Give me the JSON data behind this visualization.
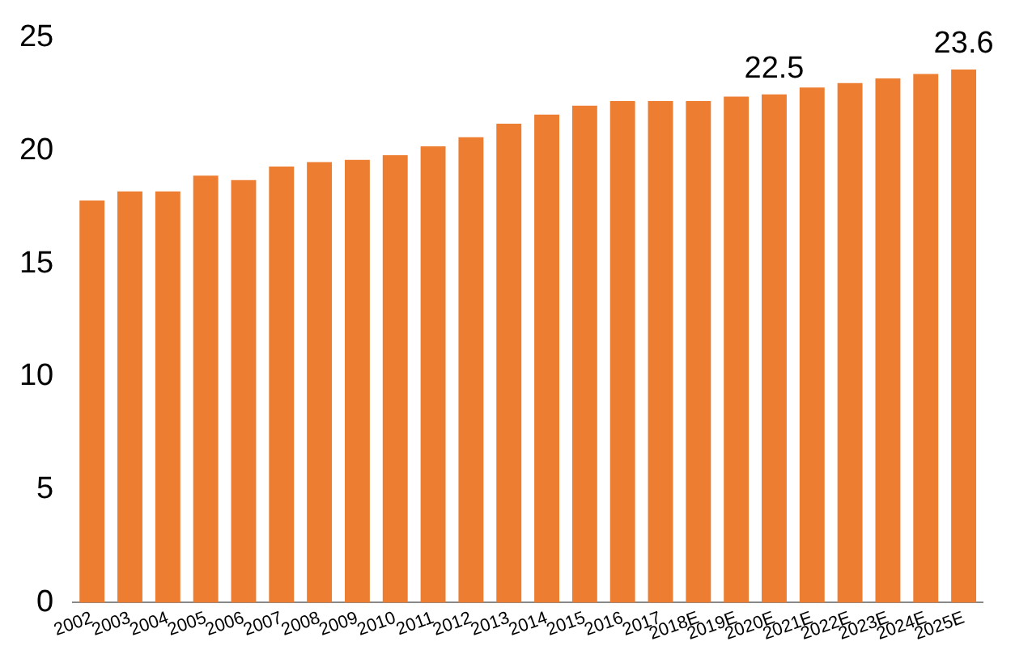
{
  "chart_data": {
    "type": "bar",
    "categories": [
      "2002",
      "2003",
      "2004",
      "2005",
      "2006",
      "2007",
      "2008",
      "2009",
      "2010",
      "2011",
      "2012",
      "2013",
      "2014",
      "2015",
      "2016",
      "2017",
      "2018E",
      "2019E",
      "2020E",
      "2021E",
      "2022E",
      "2023E",
      "2024E",
      "2025E"
    ],
    "values": [
      17.8,
      18.2,
      18.2,
      18.9,
      18.7,
      19.3,
      19.5,
      19.6,
      19.8,
      20.2,
      20.6,
      21.2,
      21.6,
      22.0,
      22.2,
      22.2,
      22.2,
      22.4,
      22.5,
      22.8,
      23.0,
      23.2,
      23.4,
      23.6
    ],
    "value_labels": [
      null,
      null,
      null,
      null,
      null,
      null,
      null,
      null,
      null,
      null,
      null,
      null,
      null,
      null,
      null,
      null,
      null,
      null,
      "22.5",
      null,
      null,
      null,
      null,
      "23.6"
    ],
    "color": "#ed7d31",
    "ylim": [
      0,
      25
    ],
    "yticks": [
      0,
      5,
      10,
      15,
      20,
      25
    ],
    "grid": false,
    "legend": false
  }
}
